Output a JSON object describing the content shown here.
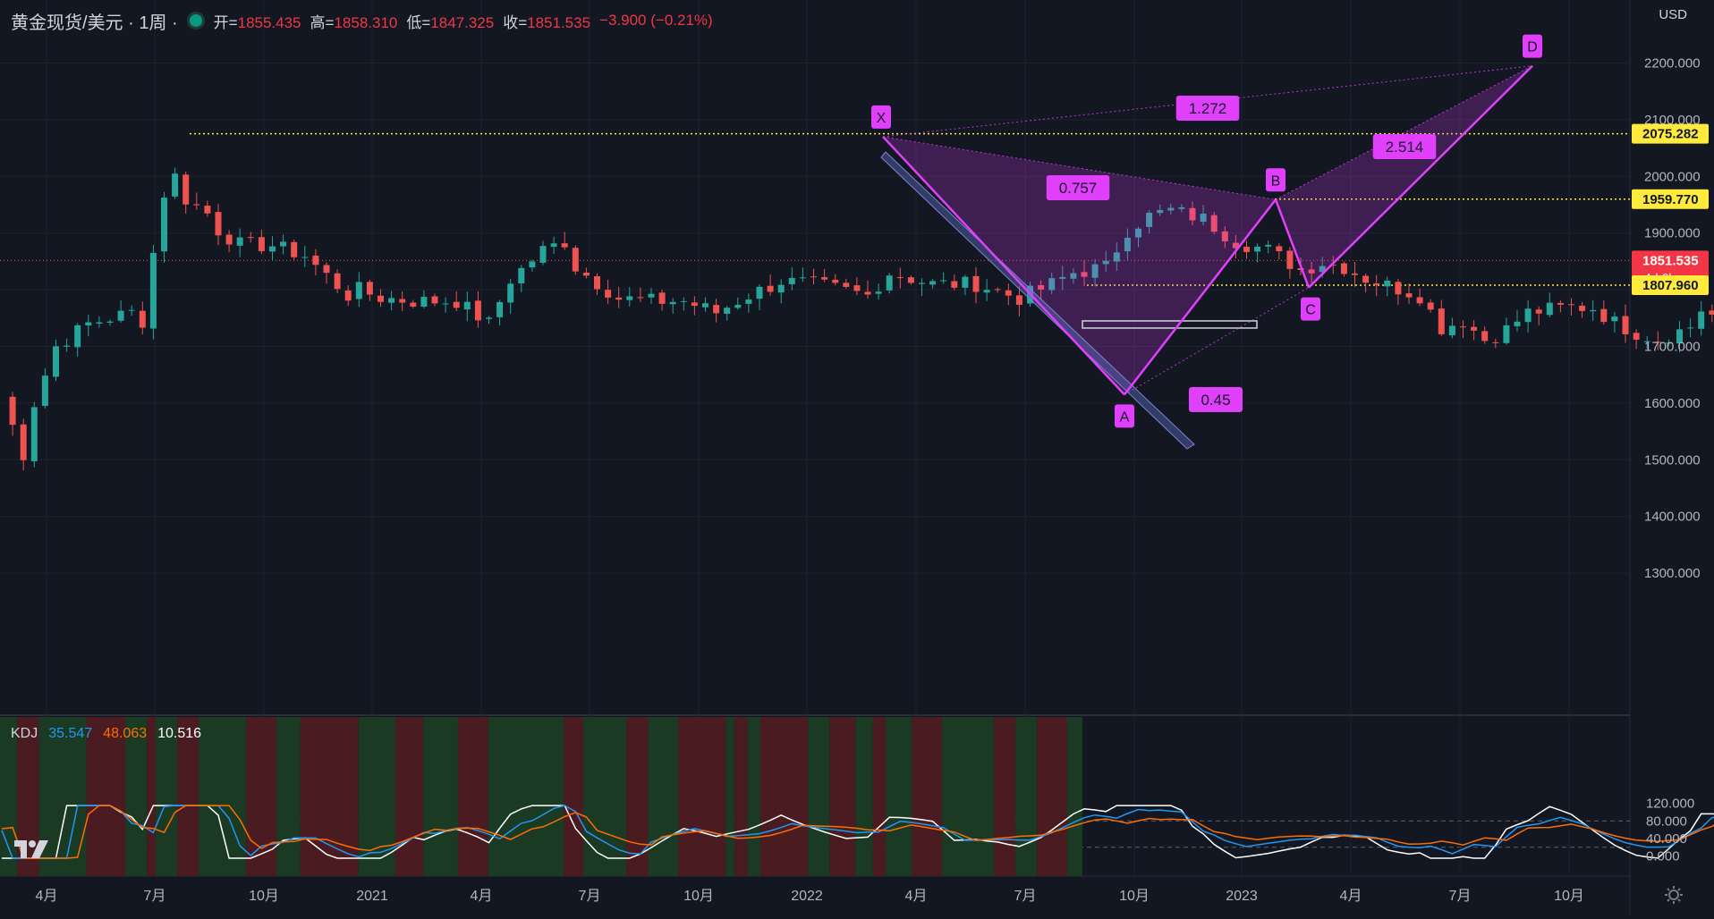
{
  "header": {
    "symbol": "黄金现货/美元 · 1周 ·",
    "open_label": "开=",
    "open": "1855.435",
    "high_label": "高=",
    "high": "1858.310",
    "low_label": "低=",
    "low": "1847.325",
    "close_label": "收=",
    "close": "1851.535",
    "change": "−3.900 (−0.21%)"
  },
  "currency": "USD",
  "price_tags": [
    {
      "value": "2075.282",
      "color": "#ffeb3b"
    },
    {
      "value": "1959.770",
      "color": "#ffeb3b"
    },
    {
      "value": "1851.535",
      "sub": "4d 6h",
      "color": "#f23645"
    },
    {
      "value": "1807.960",
      "color": "#ffeb3b"
    }
  ],
  "kdj": {
    "name": "KDJ",
    "k": "35.547",
    "d": "48.063",
    "j": "10.516",
    "k_color": "#2196f3",
    "d_color": "#ff6d00",
    "j_color": "#ffffff"
  },
  "colors": {
    "up": "#26a69a",
    "down": "#ef5350",
    "pattern": "#e040fb",
    "level": "#ffeb3b"
  },
  "chart_data": {
    "type": "candlestick",
    "y_ticks": [
      "2200.000",
      "2100.000",
      "2000.000",
      "1900.000",
      "1800.000",
      "1700.000",
      "1600.000",
      "1500.000",
      "1400.000",
      "1300.000"
    ],
    "kdj_ticks": [
      "120.000",
      "80.000",
      "40.000",
      "0.000"
    ],
    "x_ticks": [
      "4月",
      "7月",
      "10月",
      "2021",
      "4月",
      "7月",
      "10月",
      "2022",
      "4月",
      "7月",
      "10月",
      "2023",
      "4月",
      "7月",
      "10月"
    ],
    "harmonic": {
      "points": [
        {
          "label": "X",
          "week": "2022-03-07",
          "price": 2070
        },
        {
          "label": "A",
          "week": "2022-09-26",
          "price": 1615
        },
        {
          "label": "B",
          "week": "2023-01-30",
          "price": 1959
        },
        {
          "label": "C",
          "week": "2023-02-27",
          "price": 1804
        },
        {
          "label": "D",
          "week": "2023-08-28",
          "price": 2195
        }
      ],
      "ratios": [
        "1.272",
        "0.757",
        "2.514",
        "0.45"
      ]
    },
    "levels": [
      2075.282,
      1959.77,
      1851.535,
      1807.96
    ]
  }
}
